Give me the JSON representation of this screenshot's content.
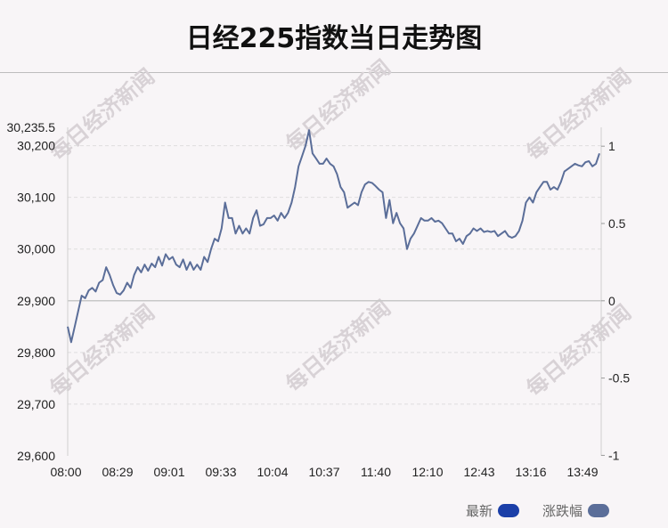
{
  "title": "日经225指数当日走势图",
  "watermark": "每日经济新闻",
  "legend": [
    {
      "label": "最新",
      "color": "#1b3fa8"
    },
    {
      "label": "涨跌幅",
      "color": "#5b6e99"
    }
  ],
  "chart_data": {
    "type": "line",
    "title": "日经225指数当日走势图",
    "x_ticks": [
      "08:00",
      "08:29",
      "09:01",
      "09:33",
      "10:04",
      "10:37",
      "11:40",
      "12:10",
      "12:43",
      "13:16",
      "13:49"
    ],
    "y_left_ticks": [
      "29,600",
      "29,700",
      "29,800",
      "29,900",
      "30,000",
      "30,100",
      "30,200",
      "30,235.5"
    ],
    "y_left_values": [
      29600,
      29700,
      29800,
      29900,
      30000,
      30100,
      30200,
      30235.5
    ],
    "y_right_ticks": [
      "-1",
      "-0.5",
      "0",
      "0.5",
      "1"
    ],
    "y_right_values": [
      -1,
      -0.5,
      0,
      0.5,
      1
    ],
    "ylim": [
      29600,
      30235.5
    ],
    "baseline": 29900,
    "line_color": "#5b6e99",
    "grid": true,
    "series": [
      {
        "name": "最新",
        "values": [
          29850,
          29820,
          29850,
          29880,
          29910,
          29905,
          29920,
          29925,
          29918,
          29935,
          29940,
          29965,
          29950,
          29930,
          29915,
          29912,
          29920,
          29935,
          29925,
          29950,
          29965,
          29955,
          29970,
          29958,
          29972,
          29965,
          29985,
          29968,
          29990,
          29980,
          29985,
          29970,
          29965,
          29980,
          29960,
          29975,
          29960,
          29970,
          29960,
          29985,
          29975,
          30000,
          30020,
          30015,
          30040,
          30090,
          30060,
          30060,
          30030,
          30045,
          30030,
          30040,
          30030,
          30060,
          30075,
          30045,
          30048,
          30060,
          30060,
          30065,
          30055,
          30070,
          30060,
          30070,
          30090,
          30120,
          30160,
          30180,
          30200,
          30230,
          30185,
          30175,
          30165,
          30165,
          30175,
          30165,
          30160,
          30145,
          30120,
          30110,
          30080,
          30085,
          30090,
          30085,
          30110,
          30125,
          30130,
          30128,
          30122,
          30115,
          30110,
          30060,
          30095,
          30050,
          30070,
          30050,
          30040,
          30000,
          30020,
          30030,
          30045,
          30060,
          30055,
          30055,
          30060,
          30053,
          30055,
          30050,
          30040,
          30030,
          30030,
          30015,
          30020,
          30010,
          30025,
          30030,
          30040,
          30035,
          30040,
          30033,
          30035,
          30033,
          30035,
          30025,
          30030,
          30035,
          30025,
          30022,
          30025,
          30035,
          30055,
          30090,
          30100,
          30090,
          30110,
          30120,
          30130,
          30130,
          30115,
          30120,
          30115,
          30130,
          30150,
          30155,
          30160,
          30165,
          30162,
          30160,
          30168,
          30170,
          30160,
          30165,
          30185
        ]
      }
    ]
  }
}
